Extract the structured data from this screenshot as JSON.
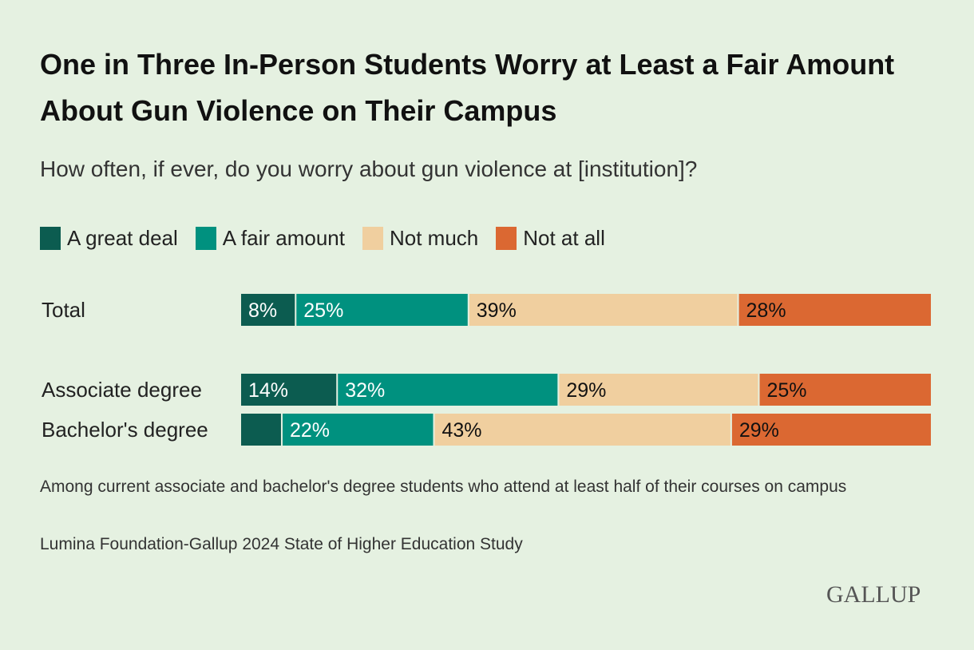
{
  "title": "One in Three In-Person Students Worry at Least a Fair Amount About Gun Violence on Their Campus",
  "subtitle": "How often, if ever, do you worry about gun violence at [institution]?",
  "note": "Among current associate and bachelor's degree students who attend at least half of their courses on campus",
  "source": "Lumina Foundation-Gallup 2024 State of Higher Education Study",
  "logo": "GALLUP",
  "legend": [
    {
      "label": "A great deal",
      "color": "#0c5c50"
    },
    {
      "label": "A fair amount",
      "color": "#00917f"
    },
    {
      "label": "Not much",
      "color": "#f0cf9f"
    },
    {
      "label": "Not at all",
      "color": "#db6832"
    }
  ],
  "chart_data": {
    "type": "bar",
    "orientation": "horizontal",
    "stacked": true,
    "categories": [
      "Total",
      "Associate degree",
      "Bachelor's degree"
    ],
    "series": [
      {
        "name": "A great deal",
        "values": [
          8,
          14,
          6
        ],
        "labels": [
          "8%",
          "14%",
          ""
        ],
        "color": "#0c5c50"
      },
      {
        "name": "A fair amount",
        "values": [
          25,
          32,
          22
        ],
        "labels": [
          "25%",
          "32%",
          "22%"
        ],
        "color": "#00917f"
      },
      {
        "name": "Not much",
        "values": [
          39,
          29,
          43
        ],
        "labels": [
          "39%",
          "29%",
          "43%"
        ],
        "color": "#f0cf9f"
      },
      {
        "name": "Not at all",
        "values": [
          28,
          25,
          29
        ],
        "labels": [
          "28%",
          "25%",
          "29%"
        ],
        "color": "#db6832"
      }
    ],
    "xlim": [
      0,
      100
    ],
    "grid": false,
    "legend_position": "top-left"
  }
}
